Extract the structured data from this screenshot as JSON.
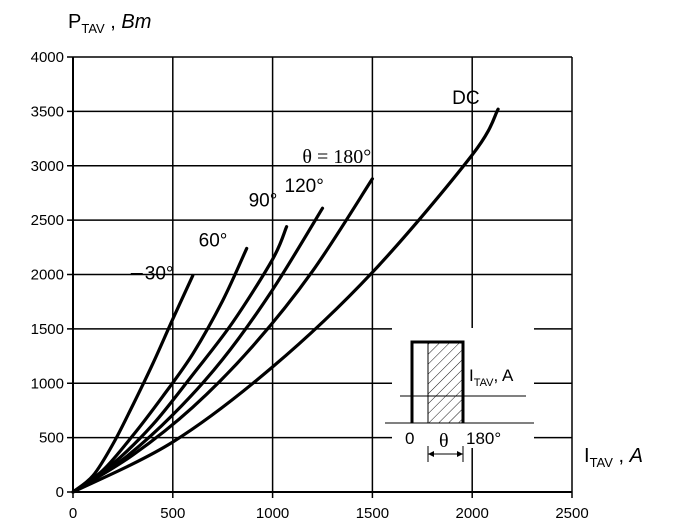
{
  "chart_data": {
    "type": "line",
    "ylabel": {
      "main": "P",
      "sub": "TAV",
      "unit": "Bm"
    },
    "xlabel": {
      "main": "I",
      "sub": "TAV",
      "unit": "A"
    },
    "xlim": [
      0,
      2500
    ],
    "ylim": [
      0,
      4000
    ],
    "x_ticks": [
      "0",
      "500",
      "1000",
      "1500",
      "2000",
      "2500"
    ],
    "y_ticks": [
      "0",
      "500",
      "1000",
      "1500",
      "2000",
      "2500",
      "3000",
      "3500",
      "4000"
    ],
    "grid": true,
    "series": [
      {
        "name": "30°",
        "x": [
          0,
          100,
          200,
          300,
          400,
          500,
          600
        ],
        "y": [
          0,
          150,
          440,
          800,
          1180,
          1590,
          1990
        ]
      },
      {
        "name": "60°",
        "x": [
          0,
          150,
          300,
          450,
          600,
          750,
          870
        ],
        "y": [
          0,
          200,
          520,
          880,
          1270,
          1760,
          2240
        ]
      },
      {
        "name": "90°",
        "x": [
          0,
          200,
          400,
          600,
          800,
          1000,
          1070
        ],
        "y": [
          0,
          260,
          620,
          1080,
          1560,
          2140,
          2440
        ]
      },
      {
        "name": "120°",
        "x": [
          0,
          250,
          500,
          750,
          1000,
          1250
        ],
        "y": [
          0,
          300,
          710,
          1220,
          1860,
          2610
        ]
      },
      {
        "name": "θ = 180°",
        "x": [
          0,
          300,
          600,
          900,
          1200,
          1500
        ],
        "y": [
          0,
          340,
          780,
          1340,
          2030,
          2880
        ]
      },
      {
        "name": "DC",
        "x": [
          0,
          500,
          1000,
          1500,
          2000,
          2130
        ],
        "y": [
          0,
          460,
          1150,
          2020,
          3100,
          3520
        ]
      }
    ],
    "inset": {
      "current_label_main": "I",
      "current_label_sub": "TAV",
      "current_label_unit": "A",
      "start_label": "0",
      "angle_label": "θ",
      "end_label": "180°"
    }
  }
}
